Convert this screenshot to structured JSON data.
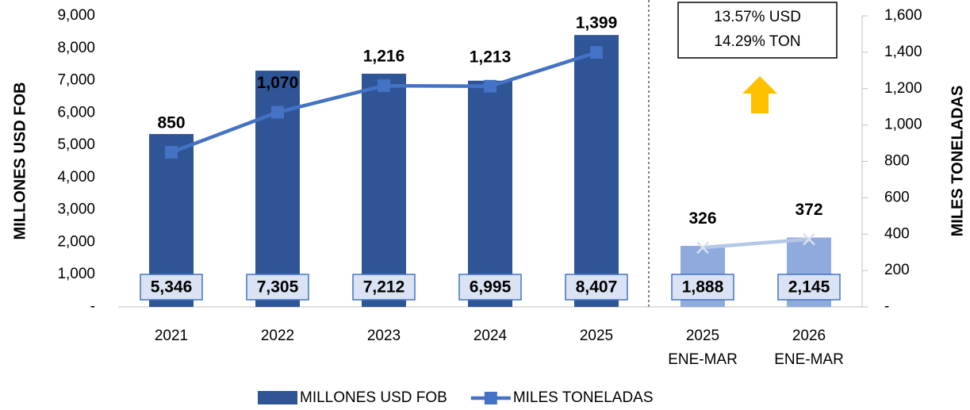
{
  "chart_data": {
    "type": "bar_line",
    "categories": [
      [
        "2021"
      ],
      [
        "2022"
      ],
      [
        "2023"
      ],
      [
        "2024"
      ],
      [
        "2025"
      ],
      [
        "2025",
        "ENE-MAR"
      ],
      [
        "2026",
        "ENE-MAR"
      ]
    ],
    "y_label": "MILLONES USD FOB",
    "y2_label": "MILES TONELADAS",
    "ylim": [
      0,
      9000
    ],
    "yticks": [
      {
        "value": 0,
        "label": "-"
      },
      {
        "value": 1000,
        "label": "1,000"
      },
      {
        "value": 2000,
        "label": "2,000"
      },
      {
        "value": 3000,
        "label": "3,000"
      },
      {
        "value": 4000,
        "label": "4,000"
      },
      {
        "value": 5000,
        "label": "5,000"
      },
      {
        "value": 6000,
        "label": "6,000"
      },
      {
        "value": 7000,
        "label": "7,000"
      },
      {
        "value": 8000,
        "label": "8,000"
      },
      {
        "value": 9000,
        "label": "9,000"
      }
    ],
    "y2lim": [
      0,
      1600
    ],
    "y2ticks": [
      {
        "value": 0,
        "label": "-"
      },
      200,
      400,
      600,
      800,
      {
        "value": 1000,
        "label": "1,000"
      },
      {
        "value": 1200,
        "label": "1,200"
      },
      {
        "value": 1400,
        "label": "1,400"
      },
      {
        "value": 1600,
        "label": "1,600"
      }
    ],
    "series": [
      {
        "name": "MILLONES USD FOB",
        "type": "bar",
        "color": "#2f5597",
        "colors": [
          "#2f5597",
          "#2f5597",
          "#2f5597",
          "#2f5597",
          "#2f5597",
          "#8faadc",
          "#8faadc"
        ],
        "values": [
          5346,
          7305,
          7212,
          6995,
          8407,
          1888,
          2145
        ],
        "value_labels": [
          "5,346",
          "7,305",
          "7,212",
          "6,995",
          "8,407",
          "1,888",
          "2,145"
        ]
      },
      {
        "name": "MILES TONELADAS",
        "type": "line",
        "axis": "y2",
        "color": "#4472c4",
        "point_colors": [
          "#4472c4",
          "#4472c4",
          "#4472c4",
          "#4472c4",
          "#4472c4",
          "#b4c7e7",
          "#b4c7e7"
        ],
        "markers": [
          "square",
          "square",
          "square",
          "square",
          "square",
          "x",
          "x"
        ],
        "values": [
          850,
          1070,
          1216,
          1213,
          1399,
          326,
          372
        ],
        "value_labels": [
          "850",
          "1,070",
          "1,216",
          "1,213",
          "1,399",
          "326",
          "372"
        ]
      }
    ],
    "annotation": [
      "13.57% USD",
      "14.29% TON"
    ]
  }
}
